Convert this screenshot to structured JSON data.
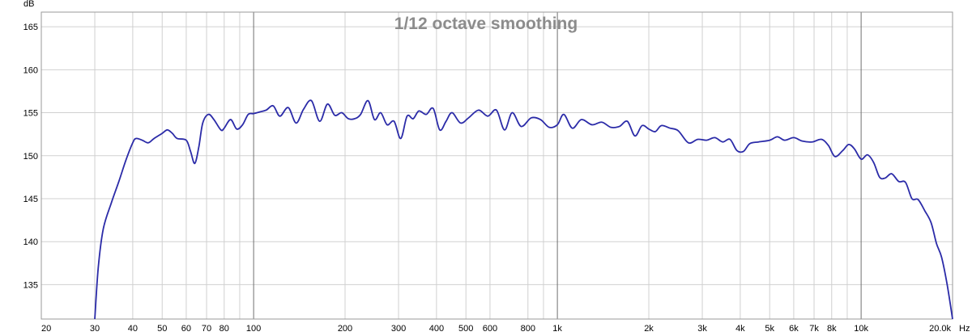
{
  "chart_data": {
    "type": "line",
    "title": "1/12 octave smoothing",
    "ylabel": "dB",
    "xlabel": "Hz",
    "x_scale": "log",
    "xlim": [
      20,
      20000
    ],
    "ylim": [
      131,
      166.7
    ],
    "grid": true,
    "y_ticks": [
      {
        "value": 135,
        "label": "135"
      },
      {
        "value": 140,
        "label": "140"
      },
      {
        "value": 145,
        "label": "145"
      },
      {
        "value": 150,
        "label": "150"
      },
      {
        "value": 155,
        "label": "155"
      },
      {
        "value": 160,
        "label": "160"
      },
      {
        "value": 165,
        "label": "165"
      }
    ],
    "x_ticks": [
      {
        "value": 20,
        "label": "20"
      },
      {
        "value": 30,
        "label": "30"
      },
      {
        "value": 40,
        "label": "40"
      },
      {
        "value": 50,
        "label": "50"
      },
      {
        "value": 60,
        "label": "60"
      },
      {
        "value": 70,
        "label": "70"
      },
      {
        "value": 80,
        "label": "80"
      },
      {
        "value": 100,
        "label": "100"
      },
      {
        "value": 200,
        "label": "200"
      },
      {
        "value": 300,
        "label": "300"
      },
      {
        "value": 400,
        "label": "400"
      },
      {
        "value": 500,
        "label": "500"
      },
      {
        "value": 600,
        "label": "600"
      },
      {
        "value": 800,
        "label": "800"
      },
      {
        "value": 1000,
        "label": "1k"
      },
      {
        "value": 2000,
        "label": "2k"
      },
      {
        "value": 3000,
        "label": "3k"
      },
      {
        "value": 4000,
        "label": "4k"
      },
      {
        "value": 5000,
        "label": "5k"
      },
      {
        "value": 6000,
        "label": "6k"
      },
      {
        "value": 7000,
        "label": "7k"
      },
      {
        "value": 8000,
        "label": "8k"
      },
      {
        "value": 10000,
        "label": "10k"
      },
      {
        "value": 20000,
        "label": "20.0k"
      }
    ],
    "minor_gridlines": [
      90,
      900,
      9000
    ],
    "major_gridlines": [
      100,
      1000,
      10000
    ],
    "series": [
      {
        "color": "#2b2ba8",
        "points": [
          [
            30.0,
            131.0
          ],
          [
            30.8,
            137.0
          ],
          [
            32.0,
            141.5
          ],
          [
            34.0,
            144.5
          ],
          [
            36.0,
            147.0
          ],
          [
            38.0,
            149.5
          ],
          [
            40.0,
            151.5
          ],
          [
            41.0,
            152.0
          ],
          [
            43.0,
            151.8
          ],
          [
            45.0,
            151.5
          ],
          [
            47.0,
            152.0
          ],
          [
            50.0,
            152.6
          ],
          [
            52.0,
            153.0
          ],
          [
            54.0,
            152.6
          ],
          [
            56.0,
            152.0
          ],
          [
            60.0,
            151.8
          ],
          [
            62.0,
            150.5
          ],
          [
            64.0,
            149.1
          ],
          [
            66.0,
            151.0
          ],
          [
            68.0,
            153.8
          ],
          [
            71.0,
            154.8
          ],
          [
            74.0,
            154.2
          ],
          [
            78.0,
            153.0
          ],
          [
            80.0,
            153.2
          ],
          [
            84.0,
            154.2
          ],
          [
            88.0,
            153.1
          ],
          [
            92.0,
            153.6
          ],
          [
            96.0,
            154.8
          ],
          [
            100.0,
            154.9
          ],
          [
            105.0,
            155.1
          ],
          [
            110.0,
            155.3
          ],
          [
            116.0,
            155.8
          ],
          [
            122.0,
            154.6
          ],
          [
            130.0,
            155.6
          ],
          [
            138.0,
            153.8
          ],
          [
            146.0,
            155.4
          ],
          [
            155.0,
            156.4
          ],
          [
            165.0,
            154.0
          ],
          [
            175.0,
            156.0
          ],
          [
            185.0,
            154.7
          ],
          [
            195.0,
            155.0
          ],
          [
            205.0,
            154.3
          ],
          [
            215.0,
            154.3
          ],
          [
            225.0,
            154.8
          ],
          [
            238.0,
            156.4
          ],
          [
            250.0,
            154.2
          ],
          [
            262.0,
            155.0
          ],
          [
            275.0,
            153.6
          ],
          [
            290.0,
            154.0
          ],
          [
            305.0,
            152.0
          ],
          [
            320.0,
            154.6
          ],
          [
            335.0,
            154.3
          ],
          [
            350.0,
            155.2
          ],
          [
            370.0,
            154.8
          ],
          [
            390.0,
            155.5
          ],
          [
            410.0,
            153.0
          ],
          [
            430.0,
            154.0
          ],
          [
            450.0,
            155.0
          ],
          [
            480.0,
            153.8
          ],
          [
            510.0,
            154.4
          ],
          [
            550.0,
            155.3
          ],
          [
            590.0,
            154.6
          ],
          [
            630.0,
            155.3
          ],
          [
            670.0,
            153.0
          ],
          [
            710.0,
            155.0
          ],
          [
            760.0,
            153.4
          ],
          [
            820.0,
            154.4
          ],
          [
            880.0,
            154.2
          ],
          [
            940.0,
            153.3
          ],
          [
            1000.0,
            153.6
          ],
          [
            1050.0,
            154.8
          ],
          [
            1120.0,
            153.2
          ],
          [
            1200.0,
            154.2
          ],
          [
            1300.0,
            153.6
          ],
          [
            1400.0,
            153.9
          ],
          [
            1500.0,
            153.3
          ],
          [
            1600.0,
            153.4
          ],
          [
            1700.0,
            154.0
          ],
          [
            1800.0,
            152.3
          ],
          [
            1900.0,
            153.5
          ],
          [
            2000.0,
            153.1
          ],
          [
            2100.0,
            152.8
          ],
          [
            2200.0,
            153.5
          ],
          [
            2350.0,
            153.2
          ],
          [
            2500.0,
            152.9
          ],
          [
            2700.0,
            151.5
          ],
          [
            2900.0,
            151.9
          ],
          [
            3100.0,
            151.8
          ],
          [
            3300.0,
            152.1
          ],
          [
            3500.0,
            151.6
          ],
          [
            3700.0,
            151.9
          ],
          [
            3900.0,
            150.6
          ],
          [
            4100.0,
            150.5
          ],
          [
            4300.0,
            151.4
          ],
          [
            4600.0,
            151.6
          ],
          [
            5000.0,
            151.8
          ],
          [
            5300.0,
            152.2
          ],
          [
            5600.0,
            151.8
          ],
          [
            6000.0,
            152.1
          ],
          [
            6400.0,
            151.7
          ],
          [
            6900.0,
            151.6
          ],
          [
            7400.0,
            151.9
          ],
          [
            7800.0,
            151.2
          ],
          [
            8200.0,
            149.9
          ],
          [
            8700.0,
            150.6
          ],
          [
            9100.0,
            151.3
          ],
          [
            9500.0,
            150.8
          ],
          [
            10000.0,
            149.6
          ],
          [
            10500.0,
            150.1
          ],
          [
            11000.0,
            149.2
          ],
          [
            11500.0,
            147.5
          ],
          [
            12000.0,
            147.4
          ],
          [
            12600.0,
            147.9
          ],
          [
            13300.0,
            147.0
          ],
          [
            14000.0,
            146.9
          ],
          [
            14700.0,
            145.0
          ],
          [
            15400.0,
            144.9
          ],
          [
            16200.0,
            143.6
          ],
          [
            17000.0,
            142.2
          ],
          [
            17700.0,
            139.8
          ],
          [
            18400.0,
            138.2
          ],
          [
            19200.0,
            135.0
          ],
          [
            20000.0,
            131.0
          ]
        ]
      }
    ]
  }
}
